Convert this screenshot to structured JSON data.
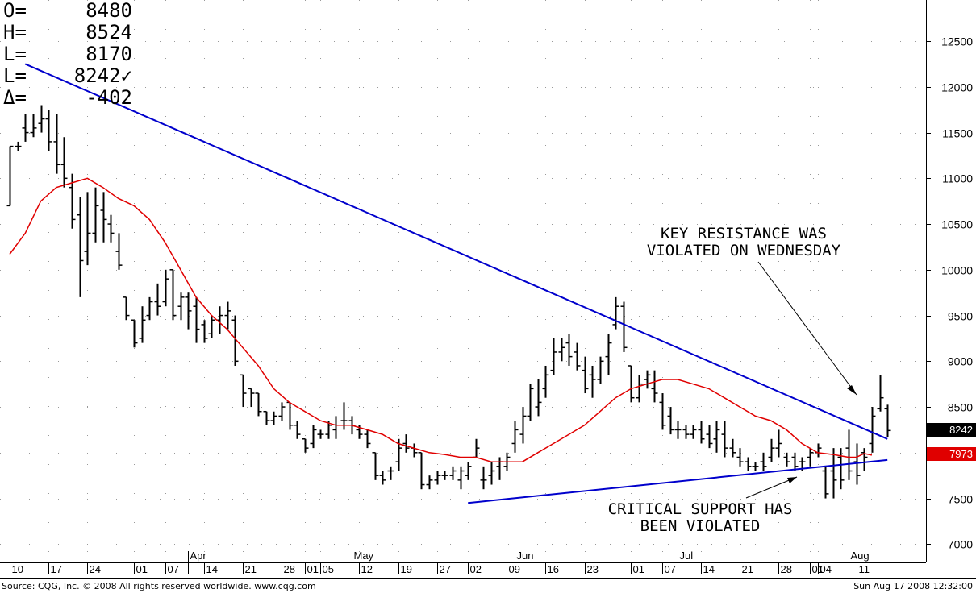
{
  "ohlc": [
    {
      "label": "O=",
      "value": "8480"
    },
    {
      "label": "H=",
      "value": "8524"
    },
    {
      "label": "L=",
      "value": "8170"
    },
    {
      "label": "L=",
      "value": "8242✓"
    },
    {
      "label": "Δ=",
      "value": "-402"
    }
  ],
  "annotations": {
    "resistance_line1": "KEY RESISTANCE WAS",
    "resistance_line2": "VIOLATED ON WEDNESDAY",
    "support_line1": "CRITICAL SUPPORT HAS",
    "support_line2": "BEEN VIOLATED"
  },
  "footer": {
    "left": "Source: CQG, Inc. © 2008 All rights reserved worldwide. www.cqg.com",
    "right": "Sun Aug 17 2008 12:32:00"
  },
  "colors": {
    "price": "#000000",
    "moving_average": "#e00000",
    "trendline": "#0000cc",
    "grid": "#999999"
  },
  "chart_data": {
    "type": "ohlc",
    "ylim": [
      6800,
      12950
    ],
    "yticks": [
      7000,
      7500,
      8000,
      8500,
      9000,
      9500,
      10000,
      10500,
      11000,
      11500,
      12000,
      12500
    ],
    "months": [
      {
        "label": "Apr",
        "day": 23
      },
      {
        "label": "May",
        "day": 44
      },
      {
        "label": "Jun",
        "day": 65
      },
      {
        "label": "Jul",
        "day": 86
      },
      {
        "label": "Aug",
        "day": 108
      }
    ],
    "xticks": [
      {
        "label": "10",
        "day": 0
      },
      {
        "label": "17",
        "day": 5
      },
      {
        "label": "24",
        "day": 10
      },
      {
        "label": "01",
        "day": 16
      },
      {
        "label": "07",
        "day": 20
      },
      {
        "label": "14",
        "day": 25
      },
      {
        "label": "21",
        "day": 30
      },
      {
        "label": "28",
        "day": 35
      },
      {
        "label": "01",
        "day": 38
      },
      {
        "label": "05",
        "day": 40
      },
      {
        "label": "12",
        "day": 45
      },
      {
        "label": "19",
        "day": 50
      },
      {
        "label": "27",
        "day": 55
      },
      {
        "label": "02",
        "day": 59
      },
      {
        "label": "09",
        "day": 64
      },
      {
        "label": "16",
        "day": 69
      },
      {
        "label": "23",
        "day": 74
      },
      {
        "label": "01",
        "day": 80
      },
      {
        "label": "07",
        "day": 84
      },
      {
        "label": "14",
        "day": 89
      },
      {
        "label": "21",
        "day": 94
      },
      {
        "label": "28",
        "day": 99
      },
      {
        "label": "01",
        "day": 103
      },
      {
        "label": "04",
        "day": 104
      },
      {
        "label": "11",
        "day": 109
      }
    ],
    "bars": [
      [
        10700,
        11350,
        10700,
        11350
      ],
      [
        11350,
        11400,
        11300,
        11350
      ],
      [
        11550,
        11700,
        11400,
        11500
      ],
      [
        11500,
        11700,
        11450,
        11550
      ],
      [
        11600,
        11800,
        11500,
        11650
      ],
      [
        11650,
        11750,
        11300,
        11400
      ],
      [
        11400,
        11700,
        11050,
        11150
      ],
      [
        11150,
        11450,
        10900,
        11000
      ],
      [
        10900,
        11050,
        10450,
        10550
      ],
      [
        10600,
        10800,
        9700,
        10100
      ],
      [
        10200,
        10850,
        10050,
        10400
      ],
      [
        10400,
        10900,
        10300,
        10700
      ],
      [
        10650,
        10850,
        10300,
        10550
      ],
      [
        10500,
        10600,
        10300,
        10400
      ],
      [
        10200,
        10400,
        10000,
        10050
      ],
      [
        9700,
        9700,
        9450,
        9500
      ],
      [
        9450,
        9450,
        9150,
        9200
      ],
      [
        9250,
        9600,
        9200,
        9450
      ],
      [
        9500,
        9700,
        9450,
        9650
      ],
      [
        9650,
        9850,
        9500,
        9600
      ],
      [
        9650,
        10000,
        9600,
        9900
      ],
      [
        10000,
        10000,
        9450,
        9500
      ],
      [
        9600,
        9750,
        9450,
        9700
      ],
      [
        9700,
        9750,
        9350,
        9550
      ],
      [
        9600,
        9700,
        9200,
        9350
      ],
      [
        9400,
        9450,
        9200,
        9250
      ],
      [
        9300,
        9500,
        9250,
        9450
      ],
      [
        9450,
        9600,
        9300,
        9500
      ],
      [
        9500,
        9650,
        9350,
        9550
      ],
      [
        9450,
        9500,
        8950,
        9000
      ],
      [
        8850,
        8850,
        8500,
        8650
      ],
      [
        8700,
        8700,
        8500,
        8650
      ],
      [
        8650,
        8650,
        8400,
        8450
      ],
      [
        8450,
        8450,
        8300,
        8350
      ],
      [
        8350,
        8450,
        8300,
        8400
      ],
      [
        8400,
        8550,
        8350,
        8500
      ],
      [
        8550,
        8550,
        8250,
        8300
      ],
      [
        8300,
        8350,
        8150,
        8200
      ],
      [
        8150,
        8150,
        8000,
        8050
      ],
      [
        8100,
        8300,
        8050,
        8250
      ],
      [
        8200,
        8250,
        8150,
        8200
      ],
      [
        8200,
        8350,
        8150,
        8300
      ],
      [
        8250,
        8400,
        8150,
        8300
      ],
      [
        8350,
        8550,
        8250,
        8350
      ],
      [
        8350,
        8400,
        8200,
        8300
      ],
      [
        8250,
        8300,
        8150,
        8200
      ],
      [
        8200,
        8250,
        8050,
        8100
      ],
      [
        8000,
        8000,
        7700,
        7750
      ],
      [
        7750,
        7800,
        7650,
        7700
      ],
      [
        7800,
        7850,
        7700,
        7800
      ],
      [
        7900,
        8150,
        7800,
        8050
      ],
      [
        8100,
        8200,
        8000,
        8050
      ],
      [
        8050,
        8100,
        7950,
        8000
      ],
      [
        8000,
        8000,
        7600,
        7650
      ],
      [
        7650,
        7750,
        7600,
        7700
      ],
      [
        7700,
        7800,
        7650,
        7750
      ],
      [
        7750,
        7800,
        7700,
        7750
      ],
      [
        7750,
        7850,
        7700,
        7800
      ],
      [
        7700,
        7850,
        7600,
        7800
      ],
      [
        7750,
        7900,
        7700,
        7850
      ],
      [
        7950,
        8150,
        7950,
        8050
      ],
      [
        7700,
        7850,
        7600,
        7700
      ],
      [
        7750,
        7900,
        7650,
        7800
      ],
      [
        7850,
        7950,
        7700,
        7900
      ],
      [
        7850,
        8000,
        7800,
        7950
      ],
      [
        8100,
        8350,
        8000,
        8250
      ],
      [
        8200,
        8500,
        8100,
        8400
      ],
      [
        8400,
        8750,
        8350,
        8700
      ],
      [
        8500,
        8800,
        8400,
        8550
      ],
      [
        8700,
        8950,
        8600,
        8850
      ],
      [
        8900,
        9250,
        8850,
        9100
      ],
      [
        9100,
        9250,
        9000,
        9150
      ],
      [
        9200,
        9300,
        8950,
        9050
      ],
      [
        9100,
        9200,
        8900,
        8950
      ],
      [
        8900,
        9050,
        8650,
        8700
      ],
      [
        8850,
        8950,
        8600,
        8800
      ],
      [
        8800,
        9050,
        8750,
        9000
      ],
      [
        9050,
        9300,
        8850,
        9200
      ],
      [
        9400,
        9700,
        9350,
        9600
      ],
      [
        9600,
        9650,
        9100,
        9150
      ],
      [
        8950,
        8950,
        8550,
        8600
      ],
      [
        8600,
        8850,
        8550,
        8750
      ],
      [
        8800,
        8900,
        8700,
        8850
      ],
      [
        8700,
        8900,
        8550,
        8650
      ],
      [
        8550,
        8650,
        8250,
        8300
      ],
      [
        8400,
        8500,
        8200,
        8250
      ],
      [
        8250,
        8350,
        8150,
        8250
      ],
      [
        8250,
        8300,
        8150,
        8200
      ],
      [
        8200,
        8300,
        8150,
        8250
      ],
      [
        8250,
        8350,
        8100,
        8150
      ],
      [
        8200,
        8300,
        8050,
        8100
      ],
      [
        8150,
        8350,
        8000,
        8250
      ],
      [
        8200,
        8350,
        7950,
        8050
      ],
      [
        8050,
        8150,
        7950,
        8000
      ],
      [
        7950,
        8050,
        7850,
        7900
      ],
      [
        7900,
        7950,
        7800,
        7850
      ],
      [
        7850,
        7900,
        7800,
        7850
      ],
      [
        7900,
        8000,
        7800,
        7850
      ],
      [
        7950,
        8150,
        7900,
        8050
      ],
      [
        8050,
        8250,
        7950,
        8100
      ],
      [
        7950,
        8000,
        7850,
        7900
      ],
      [
        7950,
        8000,
        7800,
        7850
      ],
      [
        7900,
        7950,
        7800,
        7900
      ],
      [
        7950,
        8050,
        7850,
        8000
      ],
      [
        8000,
        8100,
        7950,
        8050
      ],
      [
        7800,
        7850,
        7500,
        7550
      ],
      [
        7800,
        8050,
        7500,
        7700
      ],
      [
        7950,
        8050,
        7600,
        7700
      ],
      [
        8050,
        8250,
        7700,
        7800
      ],
      [
        7900,
        8100,
        7650,
        7750
      ],
      [
        8000,
        8050,
        7800,
        7950
      ],
      [
        8100,
        8500,
        8000,
        8400
      ],
      [
        8480,
        8850,
        8450,
        8600
      ],
      [
        8480,
        8524,
        8170,
        8242
      ]
    ],
    "moving_average": [
      [
        0,
        10170
      ],
      [
        2,
        10400
      ],
      [
        4,
        10750
      ],
      [
        6,
        10900
      ],
      [
        8,
        10950
      ],
      [
        10,
        11000
      ],
      [
        12,
        10900
      ],
      [
        14,
        10780
      ],
      [
        16,
        10700
      ],
      [
        18,
        10550
      ],
      [
        20,
        10300
      ],
      [
        22,
        10000
      ],
      [
        24,
        9700
      ],
      [
        26,
        9500
      ],
      [
        28,
        9350
      ],
      [
        30,
        9150
      ],
      [
        32,
        8950
      ],
      [
        34,
        8700
      ],
      [
        36,
        8550
      ],
      [
        38,
        8450
      ],
      [
        40,
        8350
      ],
      [
        42,
        8300
      ],
      [
        44,
        8300
      ],
      [
        46,
        8250
      ],
      [
        48,
        8200
      ],
      [
        50,
        8100
      ],
      [
        52,
        8050
      ],
      [
        54,
        8000
      ],
      [
        56,
        7980
      ],
      [
        58,
        7950
      ],
      [
        60,
        7950
      ],
      [
        62,
        7900
      ],
      [
        64,
        7900
      ],
      [
        66,
        7900
      ],
      [
        68,
        8000
      ],
      [
        70,
        8100
      ],
      [
        72,
        8200
      ],
      [
        74,
        8300
      ],
      [
        76,
        8450
      ],
      [
        78,
        8600
      ],
      [
        80,
        8700
      ],
      [
        82,
        8750
      ],
      [
        84,
        8800
      ],
      [
        86,
        8800
      ],
      [
        88,
        8750
      ],
      [
        90,
        8700
      ],
      [
        92,
        8600
      ],
      [
        94,
        8500
      ],
      [
        96,
        8400
      ],
      [
        98,
        8350
      ],
      [
        100,
        8250
      ],
      [
        102,
        8100
      ],
      [
        104,
        8000
      ],
      [
        106,
        7980
      ],
      [
        108,
        7950
      ],
      [
        109,
        7950
      ],
      [
        110,
        7990
      ],
      [
        111,
        7973
      ]
    ],
    "trendlines": [
      {
        "name": "resistance",
        "from": [
          2,
          12250
        ],
        "to": [
          113,
          8150
        ]
      },
      {
        "name": "support",
        "from": [
          59,
          7450
        ],
        "to": [
          113,
          7920
        ]
      }
    ],
    "last_price_label": "8242",
    "ma_label": "7973"
  }
}
